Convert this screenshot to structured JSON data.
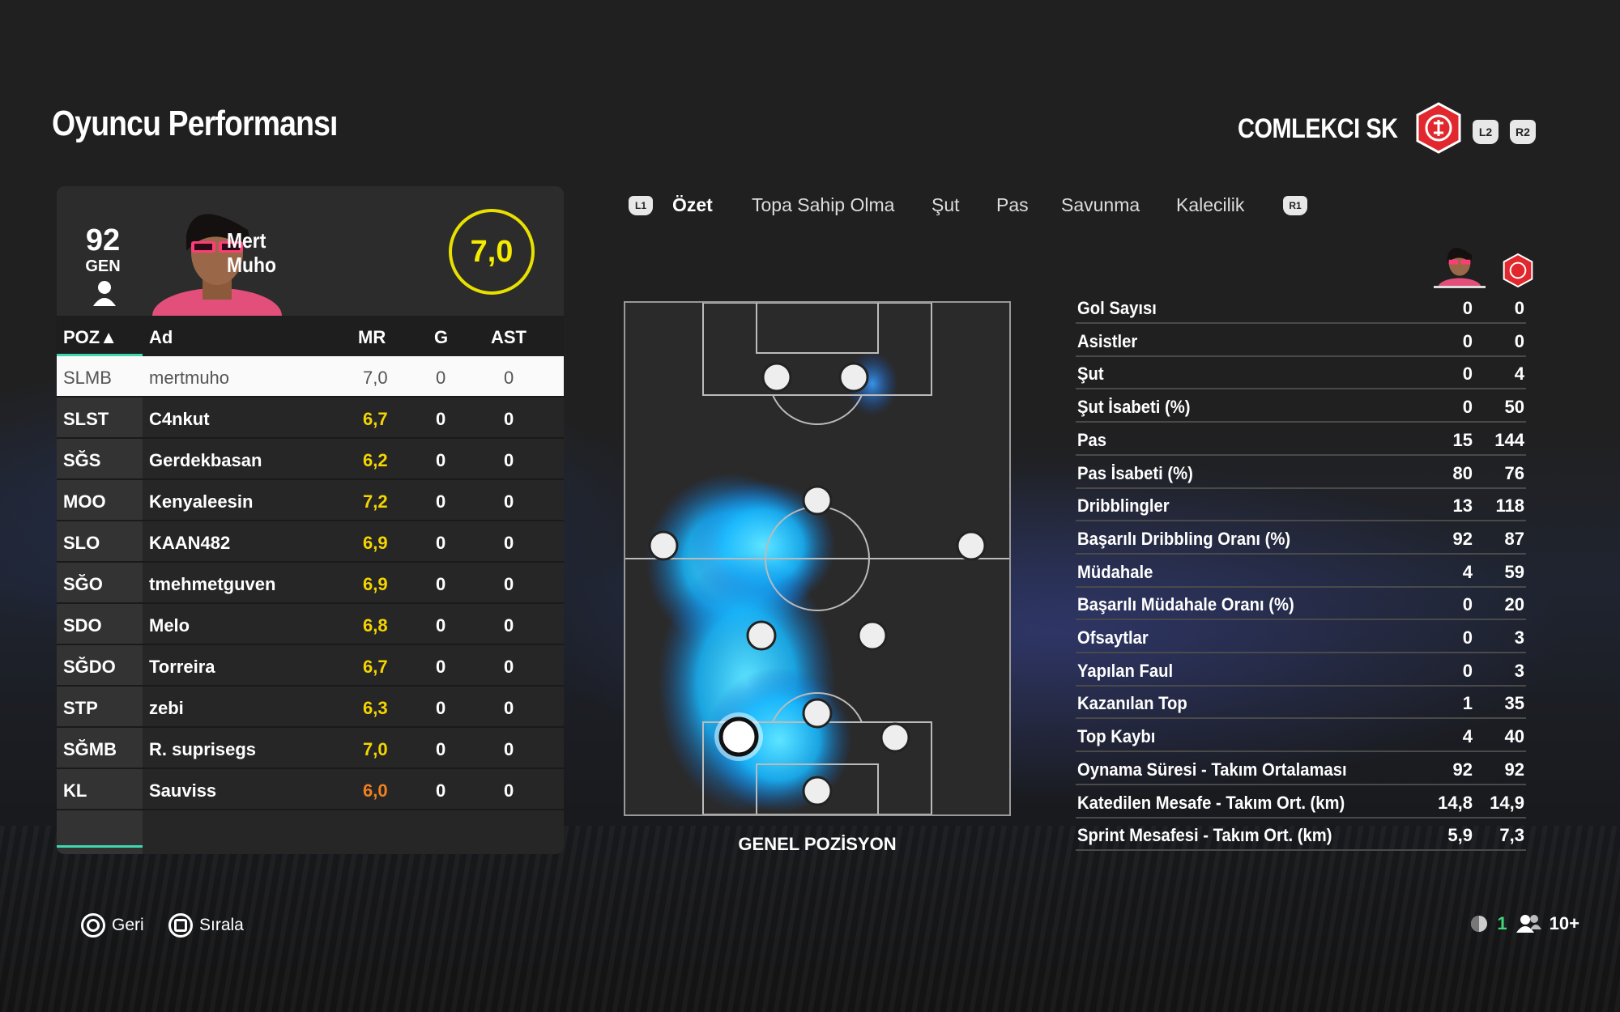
{
  "header": {
    "title": "Oyuncu Performansı",
    "team": "COMLEKCI SK",
    "l2": "L2",
    "r2": "R2"
  },
  "player": {
    "overall": "92",
    "overall_label": "GEN",
    "first_name": "Mert",
    "last_name": "Muho",
    "rating": "7,0"
  },
  "table": {
    "headers": [
      "POZ▲",
      "Ad",
      "MR",
      "G",
      "AST"
    ],
    "rows": [
      {
        "pos": "SLMB",
        "name": "mertmuho",
        "mr": "7,0",
        "g": "0",
        "ast": "0"
      },
      {
        "pos": "SLST",
        "name": "C4nkut",
        "mr": "6,7",
        "g": "0",
        "ast": "0"
      },
      {
        "pos": "SĞS",
        "name": "Gerdekbasan",
        "mr": "6,2",
        "g": "0",
        "ast": "0"
      },
      {
        "pos": "MOO",
        "name": "Kenyaleesin",
        "mr": "7,2",
        "g": "0",
        "ast": "0"
      },
      {
        "pos": "SLO",
        "name": "KAAN482",
        "mr": "6,9",
        "g": "0",
        "ast": "0"
      },
      {
        "pos": "SĞO",
        "name": "tmehmetguven",
        "mr": "6,9",
        "g": "0",
        "ast": "0"
      },
      {
        "pos": "SDO",
        "name": "Melo",
        "mr": "6,8",
        "g": "0",
        "ast": "0"
      },
      {
        "pos": "SĞDO",
        "name": "Torreira",
        "mr": "6,7",
        "g": "0",
        "ast": "0"
      },
      {
        "pos": "STP",
        "name": "zebi",
        "mr": "6,3",
        "g": "0",
        "ast": "0"
      },
      {
        "pos": "SĞMB",
        "name": "R. suprisegs",
        "mr": "7,0",
        "g": "0",
        "ast": "0"
      },
      {
        "pos": "KL",
        "name": "Sauviss",
        "mr": "6,0",
        "g": "0",
        "ast": "0"
      }
    ]
  },
  "tabs": {
    "l1": "L1",
    "r1": "R1",
    "items": [
      "Özet",
      "Topa Sahip Olma",
      "Şut",
      "Pas",
      "Savunma",
      "Kalecilik"
    ],
    "active": 0
  },
  "pitch": {
    "label": "GENEL POZİSYON"
  },
  "stats": [
    {
      "label": "Gol Sayısı",
      "player": "0",
      "team": "0"
    },
    {
      "label": "Asistler",
      "player": "0",
      "team": "0"
    },
    {
      "label": "Şut",
      "player": "0",
      "team": "4"
    },
    {
      "label": "Şut İsabeti (%)",
      "player": "0",
      "team": "50"
    },
    {
      "label": "Pas",
      "player": "15",
      "team": "144"
    },
    {
      "label": "Pas İsabeti (%)",
      "player": "80",
      "team": "76"
    },
    {
      "label": "Dribblingler",
      "player": "13",
      "team": "118"
    },
    {
      "label": "Başarılı Dribbling Oranı (%)",
      "player": "92",
      "team": "87"
    },
    {
      "label": "Müdahale",
      "player": "4",
      "team": "59"
    },
    {
      "label": "Başarılı Müdahale Oranı (%)",
      "player": "0",
      "team": "20"
    },
    {
      "label": "Ofsaytlar",
      "player": "0",
      "team": "3"
    },
    {
      "label": "Yapılan Faul",
      "player": "0",
      "team": "3"
    },
    {
      "label": "Kazanılan Top",
      "player": "1",
      "team": "35"
    },
    {
      "label": "Top Kaybı",
      "player": "4",
      "team": "40"
    },
    {
      "label": "Oynama Süresi - Takım Ortalaması",
      "player": "92",
      "team": "92"
    },
    {
      "label": "Katedilen Mesafe - Takım Ort. (km)",
      "player": "14,8",
      "team": "14,9"
    },
    {
      "label": "Sprint Mesafesi - Takım Ort. (km)",
      "player": "5,9",
      "team": "7,3"
    }
  ],
  "footer": {
    "back": "Geri",
    "sort": "Sırala",
    "online_count": "1",
    "players": "10+"
  },
  "colors": {
    "accent_teal": "#3fd7b0",
    "rating_yellow": "#f5d500",
    "rating_orange": "#f08020",
    "crest_red": "#e0282e",
    "heat_blue": "#2aa8ff"
  }
}
